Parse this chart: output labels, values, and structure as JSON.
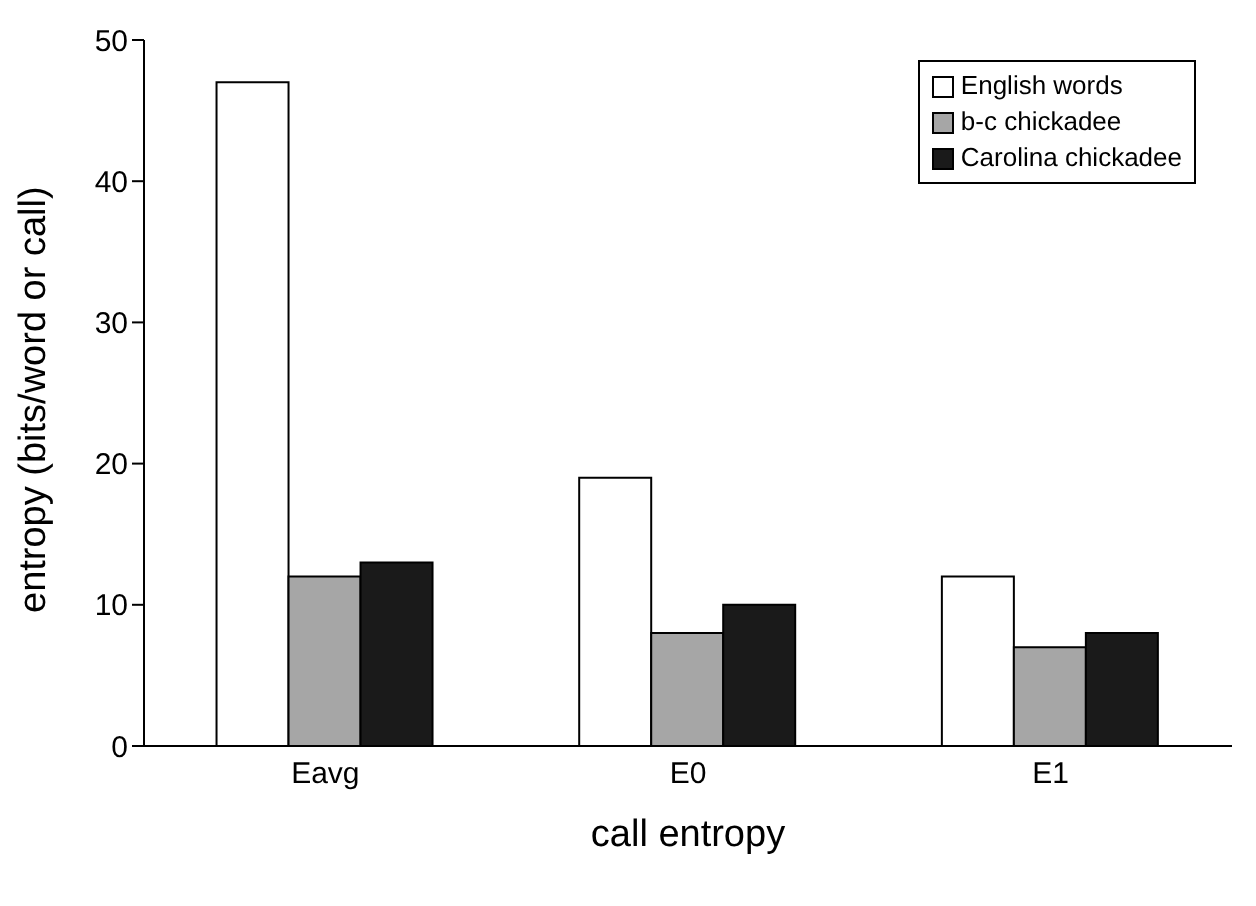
{
  "chart_data": {
    "type": "bar",
    "xlabel": "call entropy",
    "ylabel": "entropy (bits/word or call)",
    "categories": [
      "Eavg",
      "E0",
      "E1"
    ],
    "series": [
      {
        "name": "English words",
        "color": "#ffffff",
        "values": [
          47,
          19,
          12
        ]
      },
      {
        "name": "b-c chickadee",
        "color": "#a6a6a6",
        "values": [
          12,
          8,
          7
        ]
      },
      {
        "name": "Carolina chickadee",
        "color": "#1a1a1a",
        "values": [
          13,
          10,
          8
        ]
      }
    ],
    "ylim": [
      0,
      50
    ],
    "yticks": [
      0,
      10,
      20,
      30,
      40,
      50
    ],
    "grid": false,
    "legend": "top right"
  }
}
